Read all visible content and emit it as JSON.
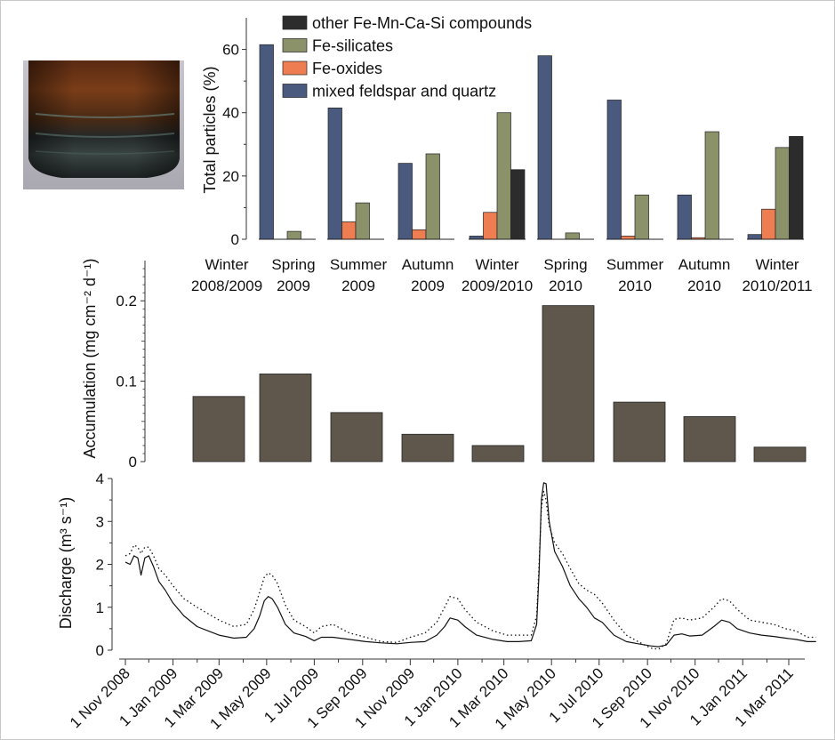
{
  "colors": {
    "frame": "#c8c8c8",
    "mixed_feldspar_quartz": "#4a5a7e",
    "fe_oxides": "#ee7e52",
    "fe_silicates": "#8b9169",
    "other_compounds": "#2c2c2c",
    "accumulation": "#5f564c"
  },
  "chart_data": [
    {
      "type": "bar",
      "ylabel": "Total particles (%)",
      "ylim": [
        0,
        70
      ],
      "yticks": [
        0,
        20,
        40,
        60
      ],
      "legend_placement": "top-left",
      "categories": [
        "Winter 2008/2009",
        "Spring 2009",
        "Summer 2009",
        "Autumn 2009",
        "Winter 2009/2010",
        "Spring 2010",
        "Summer 2010",
        "Autumn 2010",
        "Winter 2010/2011"
      ],
      "series": [
        {
          "name": "mixed feldspar and quartz",
          "values": [
            null,
            61.5,
            41.5,
            24,
            1,
            58,
            44,
            14,
            1.5
          ]
        },
        {
          "name": "Fe-oxides",
          "values": [
            null,
            0,
            5.5,
            3,
            8.5,
            0,
            1,
            0.5,
            9.5
          ]
        },
        {
          "name": "Fe-silicates",
          "values": [
            null,
            2.5,
            11.5,
            27,
            40,
            2,
            14,
            34,
            29
          ]
        },
        {
          "name": "other Fe-Mn-Ca-Si compounds",
          "values": [
            null,
            0,
            0,
            0,
            22,
            0,
            0,
            0,
            32.5
          ]
        }
      ]
    },
    {
      "type": "bar",
      "ylabel": "Accumulation (mg cm⁻² d⁻¹)",
      "ylim": [
        0,
        0.25
      ],
      "yticks": [
        0,
        0.1,
        0.2
      ],
      "ytick_labels": [
        "0",
        "0.1",
        "0.2"
      ],
      "categories": [
        "Winter 2008/2009",
        "Spring 2009",
        "Summer 2009",
        "Autumn 2009",
        "Winter 2009/2010",
        "Spring 2010",
        "Summer 2010",
        "Autumn 2010",
        "Winter 2010/2011"
      ],
      "values": [
        0.081,
        0.109,
        0.061,
        0.034,
        0.02,
        0.194,
        0.074,
        0.056,
        0.018
      ]
    },
    {
      "type": "line",
      "ylabel": "Discharge (m³ s⁻¹)",
      "ylim": [
        0,
        4
      ],
      "yticks": [
        0,
        1,
        2,
        3,
        4
      ],
      "xlabels": [
        "1 Nov 2008",
        "1 Jan 2009",
        "1 Mar 2009",
        "1 May 2009",
        "1 Jul 2009",
        "1 Sep 2009",
        "1 Nov 2009",
        "1 Jan 2010",
        "1 Mar 2010",
        "1 May 2010",
        "1 Jul 2010",
        "1 Sep 2010",
        "1 Nov 2010",
        "1 Jan 2011",
        "1 Mar 2011"
      ],
      "xlim": [
        "2008-10-20",
        "2011-04-15"
      ],
      "series": [
        {
          "style": "solid",
          "x": [
            "2008-11-01",
            "2008-11-07",
            "2008-11-12",
            "2008-11-17",
            "2008-11-21",
            "2008-11-26",
            "2008-12-01",
            "2008-12-07",
            "2008-12-14",
            "2008-12-22",
            "2009-01-01",
            "2009-01-15",
            "2009-02-01",
            "2009-02-15",
            "2009-03-01",
            "2009-03-20",
            "2009-04-05",
            "2009-04-15",
            "2009-04-22",
            "2009-04-28",
            "2009-05-03",
            "2009-05-08",
            "2009-05-15",
            "2009-05-25",
            "2009-06-05",
            "2009-06-20",
            "2009-07-01",
            "2009-07-10",
            "2009-07-25",
            "2009-08-15",
            "2009-09-05",
            "2009-09-25",
            "2009-10-15",
            "2009-11-01",
            "2009-11-20",
            "2009-12-05",
            "2009-12-15",
            "2009-12-22",
            "2010-01-01",
            "2010-01-10",
            "2010-01-25",
            "2010-02-15",
            "2010-03-05",
            "2010-03-20",
            "2010-04-05",
            "2010-04-12",
            "2010-04-15",
            "2010-04-18",
            "2010-04-21",
            "2010-04-24",
            "2010-04-28",
            "2010-05-05",
            "2010-05-15",
            "2010-05-25",
            "2010-06-05",
            "2010-06-15",
            "2010-06-25",
            "2010-07-05",
            "2010-07-20",
            "2010-08-05",
            "2010-08-20",
            "2010-09-05",
            "2010-09-15",
            "2010-09-25",
            "2010-10-05",
            "2010-10-15",
            "2010-10-25",
            "2010-11-10",
            "2010-11-25",
            "2010-12-05",
            "2010-12-15",
            "2010-12-25",
            "2011-01-10",
            "2011-01-25",
            "2011-02-10",
            "2011-02-25",
            "2011-03-10",
            "2011-03-25",
            "2011-04-05"
          ],
          "y": [
            2.05,
            2.0,
            2.2,
            2.15,
            1.75,
            2.15,
            2.2,
            1.95,
            1.6,
            1.4,
            1.1,
            0.8,
            0.55,
            0.45,
            0.35,
            0.28,
            0.3,
            0.5,
            0.8,
            1.15,
            1.25,
            1.2,
            1.0,
            0.6,
            0.4,
            0.32,
            0.22,
            0.3,
            0.3,
            0.25,
            0.2,
            0.17,
            0.15,
            0.18,
            0.2,
            0.35,
            0.55,
            0.75,
            0.7,
            0.55,
            0.35,
            0.25,
            0.2,
            0.2,
            0.22,
            0.6,
            1.8,
            3.5,
            3.9,
            3.88,
            3.0,
            2.3,
            1.95,
            1.5,
            1.2,
            1.0,
            0.75,
            0.65,
            0.35,
            0.2,
            0.15,
            0.1,
            0.08,
            0.12,
            0.35,
            0.38,
            0.33,
            0.35,
            0.55,
            0.7,
            0.65,
            0.5,
            0.4,
            0.35,
            0.32,
            0.28,
            0.25,
            0.2,
            0.2
          ]
        },
        {
          "style": "dotted",
          "x": [
            "2008-11-01",
            "2008-11-07",
            "2008-11-12",
            "2008-11-17",
            "2008-11-21",
            "2008-11-26",
            "2008-12-01",
            "2008-12-07",
            "2008-12-14",
            "2008-12-22",
            "2009-01-01",
            "2009-01-15",
            "2009-02-01",
            "2009-02-15",
            "2009-03-01",
            "2009-03-20",
            "2009-04-05",
            "2009-04-15",
            "2009-04-22",
            "2009-04-28",
            "2009-05-03",
            "2009-05-08",
            "2009-05-15",
            "2009-05-25",
            "2009-06-05",
            "2009-06-20",
            "2009-07-01",
            "2009-07-10",
            "2009-07-25",
            "2009-08-15",
            "2009-09-05",
            "2009-09-25",
            "2009-10-15",
            "2009-11-01",
            "2009-11-20",
            "2009-12-05",
            "2009-12-15",
            "2009-12-22",
            "2010-01-01",
            "2010-01-10",
            "2010-01-25",
            "2010-02-15",
            "2010-03-05",
            "2010-03-20",
            "2010-04-05",
            "2010-04-12",
            "2010-04-15",
            "2010-04-18",
            "2010-04-21",
            "2010-04-24",
            "2010-04-28",
            "2010-05-05",
            "2010-05-15",
            "2010-05-25",
            "2010-06-05",
            "2010-06-15",
            "2010-06-25",
            "2010-07-05",
            "2010-07-20",
            "2010-08-05",
            "2010-08-20",
            "2010-09-05",
            "2010-09-15",
            "2010-09-25",
            "2010-10-05",
            "2010-10-15",
            "2010-10-25",
            "2010-11-10",
            "2010-11-25",
            "2010-12-05",
            "2010-12-15",
            "2010-12-25",
            "2011-01-10",
            "2011-01-25",
            "2011-02-10",
            "2011-02-25",
            "2011-03-10",
            "2011-03-25",
            "2011-04-05"
          ],
          "y": [
            2.2,
            2.25,
            2.45,
            2.4,
            2.25,
            2.4,
            2.4,
            2.2,
            1.9,
            1.75,
            1.5,
            1.2,
            1.0,
            0.85,
            0.7,
            0.55,
            0.6,
            0.95,
            1.35,
            1.7,
            1.8,
            1.75,
            1.55,
            1.05,
            0.7,
            0.55,
            0.4,
            0.55,
            0.6,
            0.4,
            0.3,
            0.2,
            0.18,
            0.3,
            0.4,
            0.65,
            1.0,
            1.25,
            1.2,
            0.95,
            0.65,
            0.45,
            0.35,
            0.35,
            0.35,
            0.8,
            2.0,
            3.3,
            3.7,
            3.5,
            2.9,
            2.5,
            2.25,
            1.9,
            1.55,
            1.4,
            1.3,
            1.1,
            0.7,
            0.35,
            0.2,
            0.05,
            0.02,
            0.15,
            0.72,
            0.75,
            0.7,
            0.75,
            1.0,
            1.2,
            1.15,
            0.95,
            0.7,
            0.65,
            0.6,
            0.5,
            0.45,
            0.3,
            0.3
          ]
        }
      ]
    }
  ]
}
